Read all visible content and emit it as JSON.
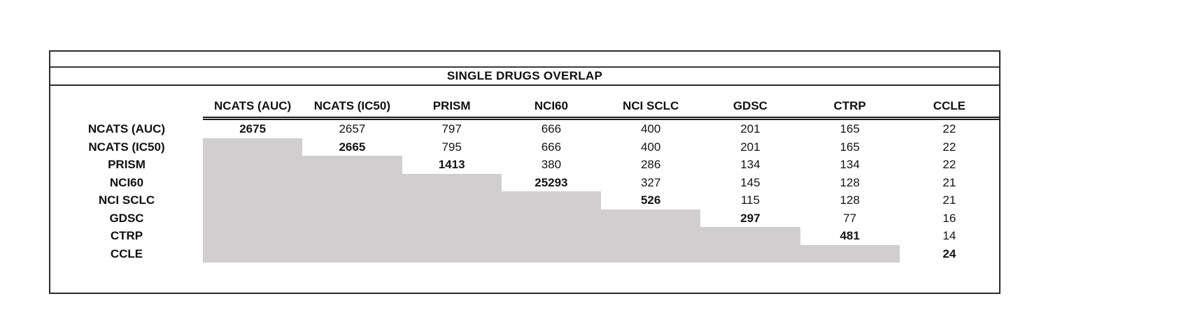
{
  "title": "SINGLE DRUGS OVERLAP",
  "colors": {
    "shaded_lower_triangle": "#d0cece",
    "border": "#2b2b2b",
    "text": "#111111",
    "background": "#ffffff"
  },
  "chart_data": {
    "type": "table",
    "title": "SINGLE DRUGS OVERLAP",
    "columns": [
      "NCATS (AUC)",
      "NCATS (IC50)",
      "PRISM",
      "NCI60",
      "NCI SCLC",
      "GDSC",
      "CTRP",
      "CCLE"
    ],
    "rows": [
      "NCATS (AUC)",
      "NCATS (IC50)",
      "PRISM",
      "NCI60",
      "NCI SCLC",
      "GDSC",
      "CTRP",
      "CCLE"
    ],
    "matrix": [
      [
        "2675",
        "2657",
        "797",
        "666",
        "400",
        "201",
        "165",
        "22"
      ],
      [
        null,
        "2665",
        "795",
        "666",
        "400",
        "201",
        "165",
        "22"
      ],
      [
        null,
        null,
        "1413",
        "380",
        "286",
        "134",
        "134",
        "22"
      ],
      [
        null,
        null,
        null,
        "25293",
        "327",
        "145",
        "128",
        "21"
      ],
      [
        null,
        null,
        null,
        null,
        "526",
        "115",
        "128",
        "21"
      ],
      [
        null,
        null,
        null,
        null,
        null,
        "297",
        "77",
        "16"
      ],
      [
        null,
        null,
        null,
        null,
        null,
        null,
        "481",
        "14"
      ],
      [
        null,
        null,
        null,
        null,
        null,
        null,
        null,
        "24"
      ]
    ],
    "layout_hints": {
      "diagonal_bold": true,
      "lower_triangle_shaded": true,
      "header_rule": "double",
      "legend_position": "none",
      "grid": "off"
    }
  }
}
